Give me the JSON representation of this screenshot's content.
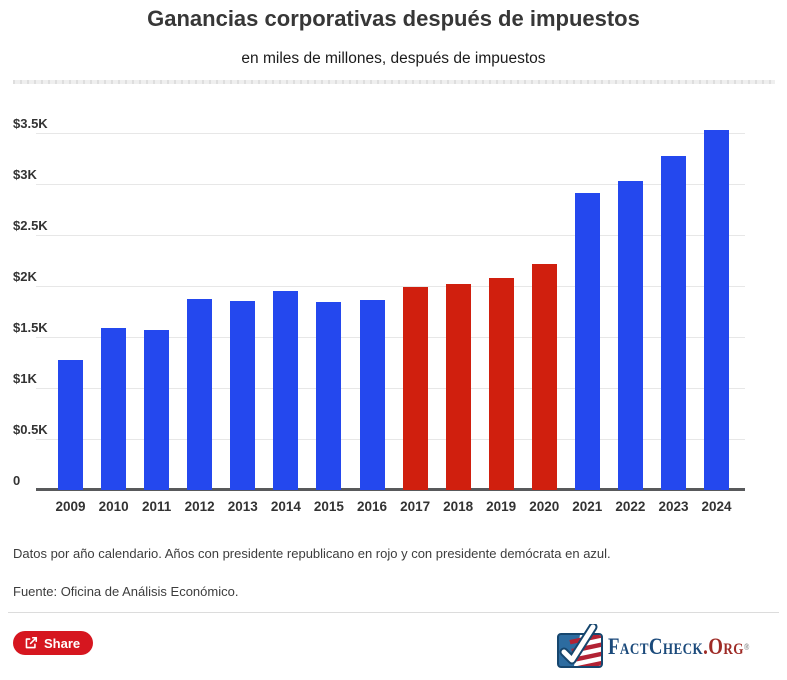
{
  "chart_data": {
    "type": "bar",
    "title": "Ganancias corporativas después de impuestos",
    "subtitle": "en miles de millones, después de impuestos",
    "xlabel": "",
    "ylabel": "",
    "categories": [
      "2009",
      "2010",
      "2011",
      "2012",
      "2013",
      "2014",
      "2015",
      "2016",
      "2017",
      "2018",
      "2019",
      "2020",
      "2021",
      "2022",
      "2023",
      "2024"
    ],
    "values": [
      1.27,
      1.59,
      1.57,
      1.87,
      1.85,
      1.95,
      1.84,
      1.86,
      1.99,
      2.02,
      2.08,
      2.22,
      2.91,
      3.03,
      3.27,
      3.53
    ],
    "value_unit": "miles de $K (1K = $1,000 miles de millones)",
    "party_by_year": [
      "D",
      "D",
      "D",
      "D",
      "D",
      "D",
      "D",
      "D",
      "R",
      "R",
      "R",
      "R",
      "D",
      "D",
      "D",
      "D"
    ],
    "colors": {
      "R": "#d01f0e",
      "D": "#2448ee"
    },
    "y_ticks": [
      "$3.5K",
      "$3K",
      "$2.5K",
      "$2K",
      "$1.5K",
      "$1K",
      "$0.5K",
      "0"
    ],
    "y_tick_values": [
      3.5,
      3,
      2.5,
      2,
      1.5,
      1,
      0.5,
      0
    ],
    "ylim": [
      0,
      3.72
    ],
    "grid": true,
    "legend": "none"
  },
  "footer": {
    "note": "Datos por año calendario. Años con presidente republicano en rojo y con presidente demócrata en azul.",
    "source": "Fuente: Oficina de Análisis Económico."
  },
  "share": {
    "label": "Share",
    "color": "#d6161f"
  },
  "logo": {
    "name": "FactCheck.org",
    "text_main": "FactCheck",
    "text_suffix": ".Org",
    "reg_mark": "®",
    "navy": "#1b4a7b",
    "dark_red": "#9e2b26",
    "flag_blue": "#2d6ca0",
    "flag_border": "#16466e",
    "stripe_red": "#b22234"
  }
}
